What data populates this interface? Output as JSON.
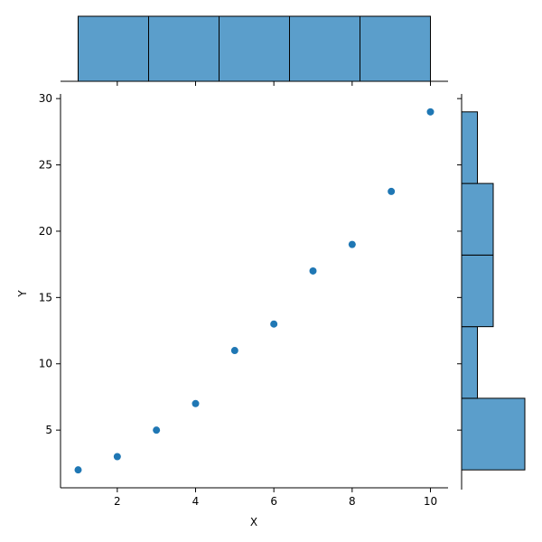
{
  "chart_data": {
    "type": "scatter",
    "title": "",
    "xlabel": "X",
    "ylabel": "Y",
    "x": [
      1,
      2,
      3,
      4,
      5,
      6,
      7,
      8,
      9,
      10
    ],
    "y": [
      2,
      3,
      5,
      7,
      11,
      13,
      17,
      19,
      23,
      29
    ],
    "xlim": [
      0.55,
      10.45
    ],
    "ylim": [
      0.65,
      30.35
    ],
    "xticks": [
      "2",
      "4",
      "6",
      "8",
      "10"
    ],
    "yticks": [
      "5",
      "10",
      "15",
      "20",
      "25",
      "30"
    ],
    "grid": false,
    "point_color": "#1f77b4",
    "bar_color": "#5b9ecb",
    "marginal_x": {
      "type": "histogram",
      "bin_edges": [
        1.0,
        2.8,
        4.6,
        6.4,
        8.2,
        10.0
      ],
      "counts": [
        2,
        2,
        2,
        2,
        2
      ]
    },
    "marginal_y": {
      "type": "histogram",
      "bin_edges": [
        2.0,
        7.4,
        12.8,
        18.2,
        23.6,
        29.0
      ],
      "counts": [
        4,
        1,
        2,
        2,
        1
      ]
    }
  }
}
